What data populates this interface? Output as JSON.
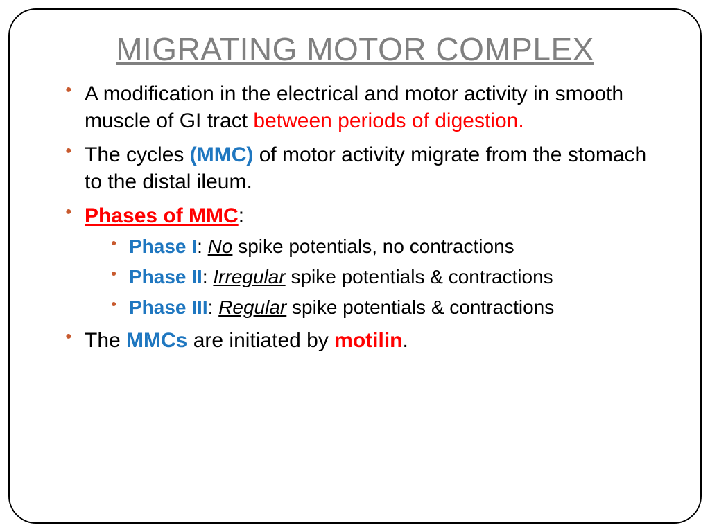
{
  "colors": {
    "title_color": "#808080",
    "bullet_color": "#c85a2e",
    "highlight_red": "#ff0000",
    "highlight_blue": "#1f77c0",
    "text_color": "#000000",
    "background": "#ffffff",
    "border_color": "#000000"
  },
  "typography": {
    "title_fontsize": 46,
    "body_fontsize": 30,
    "sub_fontsize": 28,
    "font_family": "Arial"
  },
  "title": "MIGRATING MOTOR COMPLEX",
  "bullets": {
    "b1_pre": "A modification in the electrical and motor activity in smooth muscle of GI tract ",
    "b1_red": "between periods of digestion.",
    "b2_pre": "The cycles ",
    "b2_blue": "(MMC)",
    "b2_post": " of motor activity migrate from the stomach to the distal ileum.",
    "b3_label": "Phases of MMC",
    "b3_colon": ":",
    "phase1_label": "Phase I",
    "phase1_colon": ": ",
    "phase1_ital": "No",
    "phase1_rest": " spike potentials, no contractions",
    "phase2_label": "Phase II",
    "phase2_colon": ": ",
    "phase2_ital": "Irregular",
    "phase2_rest": " spike potentials & contractions",
    "phase3_label": "Phase III",
    "phase3_colon": ": ",
    "phase3_ital": "Regular",
    "phase3_rest": " spike potentials & contractions",
    "b4_pre": "The ",
    "b4_blue": "MMCs",
    "b4_mid": " are initiated by ",
    "b4_red": "motilin",
    "b4_post": "."
  }
}
